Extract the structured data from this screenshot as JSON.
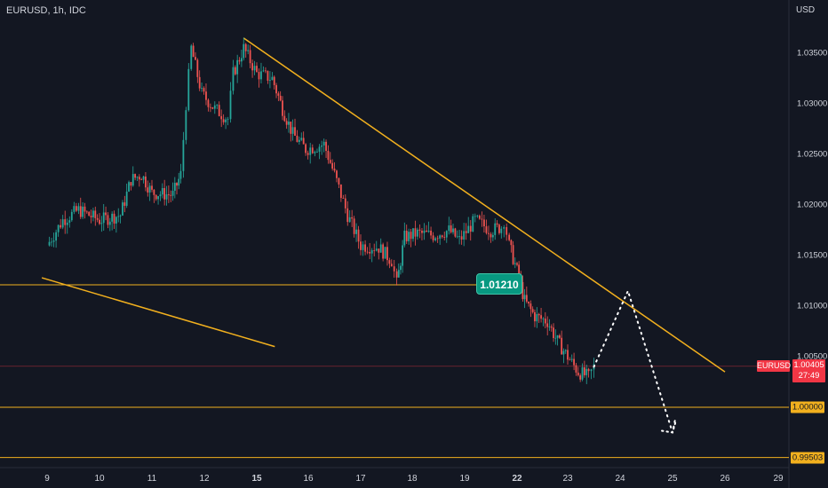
{
  "chart_data": {
    "type": "candlestick",
    "symbol_title": "EURUSD, 1h, IDC",
    "currency": "USD",
    "y_ticks": [
      "1.03500",
      "1.03000",
      "1.02500",
      "1.02000",
      "1.01500",
      "1.01000",
      "1.00500"
    ],
    "ylim": [
      0.995,
      1.0395
    ],
    "x_ticks": [
      {
        "label": "9",
        "bold": false
      },
      {
        "label": "10",
        "bold": false
      },
      {
        "label": "11",
        "bold": false
      },
      {
        "label": "12",
        "bold": false
      },
      {
        "label": "15",
        "bold": true
      },
      {
        "label": "16",
        "bold": false
      },
      {
        "label": "17",
        "bold": false
      },
      {
        "label": "18",
        "bold": false
      },
      {
        "label": "19",
        "bold": false
      },
      {
        "label": "22",
        "bold": true
      },
      {
        "label": "23",
        "bold": false
      },
      {
        "label": "24",
        "bold": false
      },
      {
        "label": "25",
        "bold": false
      },
      {
        "label": "26",
        "bold": false
      },
      {
        "label": "29",
        "bold": false
      }
    ],
    "price_path": [
      {
        "day": 8.0,
        "price": 1.016
      },
      {
        "day": 8.3,
        "price": 1.0185
      },
      {
        "day": 8.6,
        "price": 1.0195
      },
      {
        "day": 9.0,
        "price": 1.0185
      },
      {
        "day": 9.4,
        "price": 1.019
      },
      {
        "day": 9.6,
        "price": 1.0225
      },
      {
        "day": 9.8,
        "price": 1.023
      },
      {
        "day": 10.0,
        "price": 1.0212
      },
      {
        "day": 10.4,
        "price": 1.021
      },
      {
        "day": 10.55,
        "price": 1.023
      },
      {
        "day": 10.65,
        "price": 1.03
      },
      {
        "day": 10.75,
        "price": 1.0355
      },
      {
        "day": 10.95,
        "price": 1.031
      },
      {
        "day": 11.2,
        "price": 1.0295
      },
      {
        "day": 11.45,
        "price": 1.0285
      },
      {
        "day": 11.55,
        "price": 1.033
      },
      {
        "day": 11.75,
        "price": 1.0355
      },
      {
        "day": 12.0,
        "price": 1.033
      },
      {
        "day": 12.3,
        "price": 1.0325
      },
      {
        "day": 12.5,
        "price": 1.0295
      },
      {
        "day": 12.7,
        "price": 1.027
      },
      {
        "day": 12.95,
        "price": 1.0255
      },
      {
        "day": 13.3,
        "price": 1.026
      },
      {
        "day": 13.5,
        "price": 1.023
      },
      {
        "day": 13.75,
        "price": 1.019
      },
      {
        "day": 14.0,
        "price": 1.016
      },
      {
        "day": 14.35,
        "price": 1.0158
      },
      {
        "day": 14.6,
        "price": 1.0145
      },
      {
        "day": 14.7,
        "price": 1.0122
      },
      {
        "day": 14.85,
        "price": 1.0168
      },
      {
        "day": 15.1,
        "price": 1.0172
      },
      {
        "day": 15.4,
        "price": 1.017
      },
      {
        "day": 15.7,
        "price": 1.0175
      },
      {
        "day": 15.9,
        "price": 1.0165
      },
      {
        "day": 16.2,
        "price": 1.0185
      },
      {
        "day": 16.5,
        "price": 1.0175
      },
      {
        "day": 16.7,
        "price": 1.0178
      },
      {
        "day": 16.75,
        "price": 1.0185
      },
      {
        "day": 16.85,
        "price": 1.016
      },
      {
        "day": 17.0,
        "price": 1.0135
      },
      {
        "day": 17.15,
        "price": 1.0105
      },
      {
        "day": 17.35,
        "price": 1.009
      },
      {
        "day": 17.6,
        "price": 1.0085
      },
      {
        "day": 17.8,
        "price": 1.0065
      },
      {
        "day": 18.0,
        "price": 1.005
      },
      {
        "day": 18.2,
        "price": 1.0035
      },
      {
        "day": 18.4,
        "price": 1.003
      },
      {
        "day": 18.5,
        "price": 1.004
      }
    ],
    "projection": [
      {
        "day": 18.5,
        "price": 1.004
      },
      {
        "day": 19.15,
        "price": 1.0115
      },
      {
        "day": 20.0,
        "price": 0.9975
      },
      {
        "day": 20.05,
        "price": 0.9988
      }
    ],
    "trendlines": [
      {
        "from": {
          "day": 11.75,
          "price": 1.0365
        },
        "to": {
          "day": 21.0,
          "price": 1.0035
        }
      },
      {
        "from": {
          "day": 7.9,
          "price": 1.0128
        },
        "to": {
          "day": 12.35,
          "price": 1.006
        }
      }
    ],
    "support_level": 1.0121,
    "callout_label": "1.01210",
    "horizontal_levels": [
      "1.00000",
      "0.99503"
    ],
    "last_price": {
      "symbol": "EURUSD",
      "value": "1.00405",
      "countdown": "27:49"
    },
    "colors": {
      "background": "#131722",
      "up": "#26a69a",
      "down": "#ef5350",
      "lines": "#f2b01e",
      "callout": "#089981",
      "price_tag": "#f23645"
    }
  }
}
